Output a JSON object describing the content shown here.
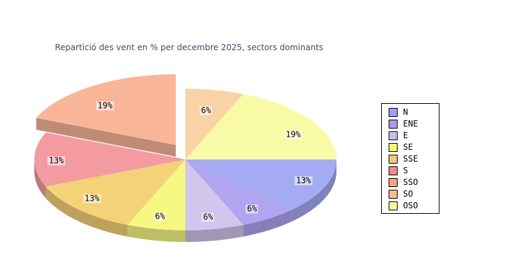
{
  "title": {
    "text": "Repartició des vent en % per decembre 2025, sectors dominants",
    "color": "#3d4a6e"
  },
  "chart_data": {
    "type": "pie",
    "title": "Repartició des vent en % per decembre 2025, sectors dominants",
    "unit": "%",
    "effect_3d": true,
    "legend_position": "right",
    "start_angle_clockwise_from_3oclock": 0,
    "sectors": [
      {
        "label": "N",
        "pct_label": "13%",
        "value_pct": 12.5,
        "legend_color": "#9ba1f2",
        "slice_color": "#a4abf3",
        "exploded": false
      },
      {
        "label": "ENE",
        "pct_label": "6%",
        "value_pct": 6.25,
        "legend_color": "#a89df0",
        "slice_color": "#b1a5f1",
        "exploded": false
      },
      {
        "label": "E",
        "pct_label": "6%",
        "value_pct": 6.25,
        "legend_color": "#c9bce9",
        "slice_color": "#d1c6ec",
        "exploded": false
      },
      {
        "label": "SE",
        "pct_label": "6%",
        "value_pct": 6.25,
        "legend_color": "#f5f76e",
        "slice_color": "#f6f883",
        "exploded": false
      },
      {
        "label": "SSE",
        "pct_label": "13%",
        "value_pct": 12.5,
        "legend_color": "#f2cb70",
        "slice_color": "#f4d277",
        "exploded": false
      },
      {
        "label": "S",
        "pct_label": "13%",
        "value_pct": 12.5,
        "legend_color": "#f28b90",
        "slice_color": "#f49aa1",
        "exploded": false
      },
      {
        "label": "SSO",
        "pct_label": "19%",
        "value_pct": 18.75,
        "legend_color": "#f5a285",
        "slice_color": "#f9b598",
        "exploded": true
      },
      {
        "label": "SO",
        "pct_label": "6%",
        "value_pct": 6.25,
        "legend_color": "#f6bf8d",
        "slice_color": "#f9d2a5",
        "exploded": false
      },
      {
        "label": "OSO",
        "pct_label": "19%",
        "value_pct": 18.75,
        "legend_color": "#f8f89b",
        "slice_color": "#f9faa6",
        "exploded": false
      }
    ]
  }
}
